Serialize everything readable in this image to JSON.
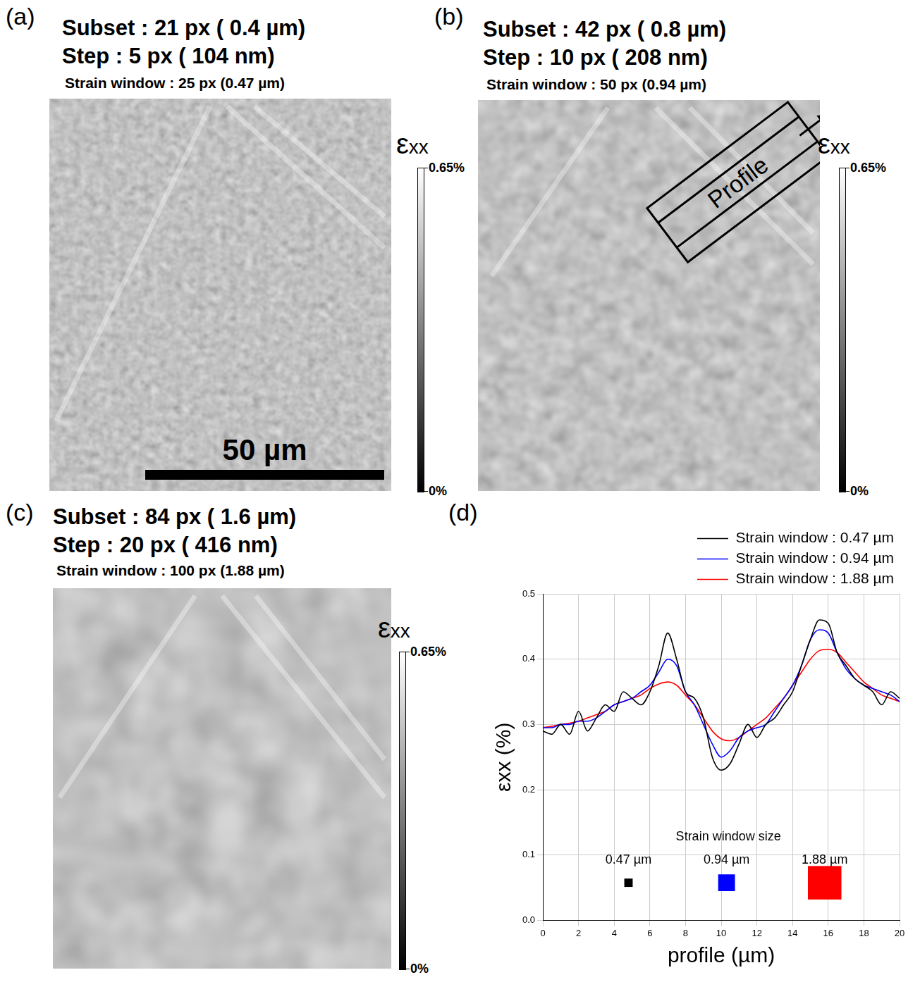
{
  "maps": [
    {
      "letter": "(a)",
      "subset": "Subset : 21 px ( 0.4 µm)",
      "step": "Step : 5 px ( 104 nm)",
      "strain_window": "Strain window : 25 px (0.47 µm)",
      "scale_bar": "50 µm",
      "colorbar": {
        "label": "εxx",
        "range": [
          0,
          0.65
        ],
        "ticks": [
          {
            "value": 0,
            "label": "0%"
          },
          {
            "value": 0.65,
            "label": "0.65%"
          }
        ]
      }
    },
    {
      "letter": "(b)",
      "subset": "Subset : 42 px ( 0.8 µm)",
      "step": "Step : 10 px ( 208 nm)",
      "strain_window": "Strain window : 50 px (0.94 µm)",
      "annotation": "Profile",
      "colorbar": {
        "label": "εxx",
        "range": [
          0,
          0.65
        ],
        "ticks": [
          {
            "value": 0,
            "label": "0%"
          },
          {
            "value": 0.65,
            "label": "0.65%"
          }
        ]
      }
    },
    {
      "letter": "(c)",
      "subset": "Subset : 84 px ( 1.6 µm)",
      "step": "Step : 20 px ( 416 nm)",
      "strain_window": "Strain window : 100 px (1.88 µm)",
      "colorbar": {
        "label": "εxx",
        "range": [
          0,
          0.65
        ],
        "ticks": [
          {
            "value": 0,
            "label": "0%"
          },
          {
            "value": 0.65,
            "label": "0.65%"
          }
        ]
      }
    }
  ],
  "chart_data": {
    "type": "line",
    "letter": "(d)",
    "x_label": "profile (µm)",
    "y_label": "εxx (%)",
    "x": [
      0,
      0.5,
      1,
      1.5,
      2,
      2.5,
      3,
      3.5,
      4,
      4.5,
      5,
      5.5,
      6,
      6.5,
      7,
      7.5,
      8,
      8.5,
      9,
      9.5,
      10,
      10.5,
      11,
      11.5,
      12,
      12.5,
      13,
      13.5,
      14,
      14.5,
      15,
      15.5,
      16,
      16.5,
      17,
      17.5,
      18,
      18.5,
      19,
      19.5,
      20
    ],
    "series": [
      {
        "name": "Strain window : 0.47 µm",
        "color": "#000000",
        "values": [
          0.29,
          0.285,
          0.3,
          0.285,
          0.32,
          0.29,
          0.31,
          0.33,
          0.32,
          0.35,
          0.34,
          0.33,
          0.35,
          0.39,
          0.44,
          0.4,
          0.35,
          0.34,
          0.31,
          0.25,
          0.23,
          0.24,
          0.27,
          0.3,
          0.28,
          0.3,
          0.31,
          0.33,
          0.35,
          0.39,
          0.43,
          0.46,
          0.455,
          0.41,
          0.39,
          0.37,
          0.36,
          0.35,
          0.33,
          0.35,
          0.34
        ]
      },
      {
        "name": "Strain window : 0.94 µm",
        "color": "#0000ff",
        "values": [
          0.295,
          0.295,
          0.3,
          0.3,
          0.305,
          0.305,
          0.31,
          0.32,
          0.33,
          0.335,
          0.34,
          0.35,
          0.36,
          0.38,
          0.4,
          0.39,
          0.35,
          0.33,
          0.3,
          0.27,
          0.25,
          0.26,
          0.28,
          0.29,
          0.295,
          0.3,
          0.32,
          0.34,
          0.36,
          0.39,
          0.43,
          0.445,
          0.44,
          0.41,
          0.385,
          0.37,
          0.36,
          0.355,
          0.35,
          0.345,
          0.335
        ]
      },
      {
        "name": "Strain window : 1.88 µm",
        "color": "#ff0000",
        "values": [
          0.295,
          0.297,
          0.3,
          0.302,
          0.305,
          0.31,
          0.315,
          0.32,
          0.33,
          0.335,
          0.34,
          0.345,
          0.355,
          0.362,
          0.365,
          0.36,
          0.345,
          0.33,
          0.31,
          0.29,
          0.278,
          0.275,
          0.28,
          0.29,
          0.3,
          0.31,
          0.325,
          0.34,
          0.36,
          0.38,
          0.4,
          0.413,
          0.415,
          0.41,
          0.395,
          0.38,
          0.365,
          0.355,
          0.345,
          0.34,
          0.335
        ]
      }
    ],
    "xlim": [
      0,
      20
    ],
    "xticks": [
      0,
      2,
      4,
      6,
      8,
      10,
      12,
      14,
      16,
      18,
      20
    ],
    "ylim": [
      0,
      0.5
    ],
    "yticks": [
      {
        "value": 0,
        "label": "0.0"
      },
      0.1,
      0.2,
      0.3,
      0.4,
      0.5
    ],
    "grid": true,
    "legend": "top",
    "annotation": {
      "title": "Strain window size",
      "items": [
        {
          "label": "0.47 µm",
          "size": 0.47,
          "color": "#000000"
        },
        {
          "label": "0.94 µm",
          "size": 0.94,
          "color": "#0000ff"
        },
        {
          "label": "1.88 µm",
          "size": 1.88,
          "color": "#ff0000"
        }
      ]
    }
  }
}
